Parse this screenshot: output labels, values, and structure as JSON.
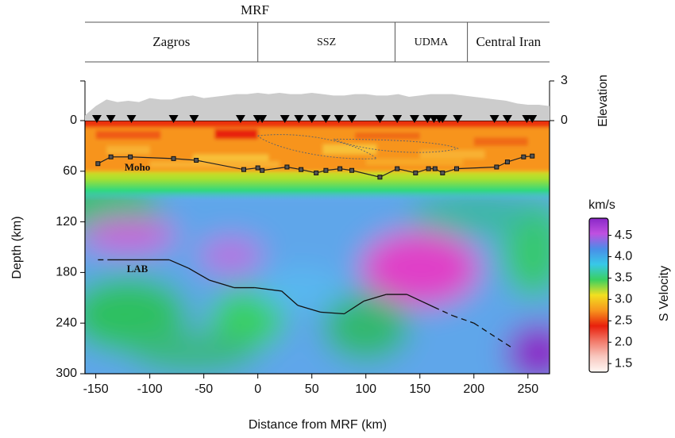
{
  "chart_data": {
    "type": "section",
    "title": "MRF",
    "x_label": "Distance from MRF (km)",
    "y_label": "Depth (km)",
    "y2_label": "Elevation",
    "colorbar_label": "S Velocity",
    "colorbar_unit": "km/s",
    "xlim": [
      -160,
      270
    ],
    "xticks": [
      -150,
      -100,
      -50,
      0,
      50,
      100,
      150,
      200,
      250
    ],
    "ylim": [
      0,
      300
    ],
    "yticks": [
      0,
      60,
      120,
      180,
      240,
      300
    ],
    "y2lim": [
      0,
      3
    ],
    "y2ticks": [
      0,
      3
    ],
    "regions": [
      {
        "name": "Zagros",
        "range": [
          -160,
          0
        ]
      },
      {
        "name": "SSZ",
        "range": [
          0,
          127
        ]
      },
      {
        "name": "UDMA",
        "range": [
          127,
          194
        ]
      },
      {
        "name": "Central Iran",
        "range": [
          194,
          270
        ]
      }
    ],
    "elevation": {
      "color": "#cccccc",
      "axis": "y2",
      "x": [
        -160,
        -150,
        -140,
        -130,
        -120,
        -110,
        -100,
        -90,
        -80,
        -70,
        -60,
        -50,
        -40,
        -30,
        -20,
        -10,
        0,
        10,
        20,
        30,
        40,
        50,
        60,
        70,
        80,
        90,
        100,
        110,
        120,
        130,
        140,
        150,
        160,
        170,
        180,
        190,
        200,
        210,
        220,
        230,
        240,
        250,
        260,
        270
      ],
      "values": [
        0.4,
        1.1,
        1.6,
        1.4,
        1.5,
        1.4,
        1.7,
        1.6,
        1.6,
        1.8,
        1.9,
        1.7,
        1.8,
        1.9,
        2.0,
        2.0,
        2.1,
        2.0,
        2.1,
        2.0,
        2.0,
        2.1,
        2.0,
        1.9,
        1.9,
        2.0,
        2.0,
        1.9,
        1.9,
        2.0,
        1.8,
        1.9,
        2.0,
        2.0,
        2.0,
        1.9,
        1.8,
        1.7,
        1.6,
        1.5,
        1.3,
        1.2,
        1.2,
        1.1
      ]
    },
    "stations": {
      "color": "#000000",
      "x": [
        -149,
        -136,
        -117,
        -78,
        -59,
        -16,
        0,
        4,
        25,
        38,
        50,
        63,
        75,
        87,
        113,
        129,
        145,
        157,
        163,
        168,
        171,
        185,
        219,
        231,
        249,
        254
      ]
    },
    "lines": [
      {
        "name": "Moho",
        "color": "#222222",
        "marker": "square",
        "x": [
          -148,
          -136,
          -118,
          -78,
          -57,
          -13,
          0,
          4,
          27,
          40,
          54,
          63,
          76,
          87,
          113,
          129,
          146,
          158,
          164,
          171,
          184,
          221,
          231,
          246,
          254
        ],
        "values": [
          51,
          43,
          43,
          45,
          47,
          58,
          56,
          59,
          55,
          58,
          62,
          59,
          57,
          59,
          67,
          57,
          62,
          57,
          57,
          62,
          57,
          55,
          49,
          43,
          42
        ]
      },
      {
        "name": "LAB",
        "color": "#111111",
        "marker": "none",
        "x": [
          -148,
          -135,
          -82,
          -64,
          -45,
          -22,
          -3,
          22,
          37,
          58,
          80,
          98,
          119,
          138,
          163,
          180,
          200,
          235
        ],
        "values": [
          165,
          165,
          165,
          175,
          189,
          198,
          198,
          202,
          219,
          227,
          229,
          214,
          206,
          206,
          221,
          231,
          240,
          269
        ],
        "dashed": [
          true,
          false,
          false,
          false,
          false,
          false,
          false,
          false,
          false,
          false,
          false,
          false,
          false,
          false,
          true,
          true,
          true
        ]
      }
    ],
    "colorbar": {
      "lim": [
        1.3,
        4.9
      ],
      "ticks": [
        {
          "value": 1.5,
          "label": "1.5"
        },
        {
          "value": 2,
          "label": "2.0"
        },
        {
          "value": 2.5,
          "label": "2.5"
        },
        {
          "value": 3,
          "label": "3.0"
        },
        {
          "value": 3.5,
          "label": "3.5"
        },
        {
          "value": 4,
          "label": "4.0"
        },
        {
          "value": 4.5,
          "label": "4.5"
        }
      ],
      "colormap": [
        "#fff8f4",
        "#f8c8c0",
        "#f27a6a",
        "#e8200c",
        "#f7941d",
        "#f2e020",
        "#3ad060",
        "#38c8e8",
        "#4a8ee8",
        "#c050e0",
        "#8a28c8"
      ]
    }
  }
}
